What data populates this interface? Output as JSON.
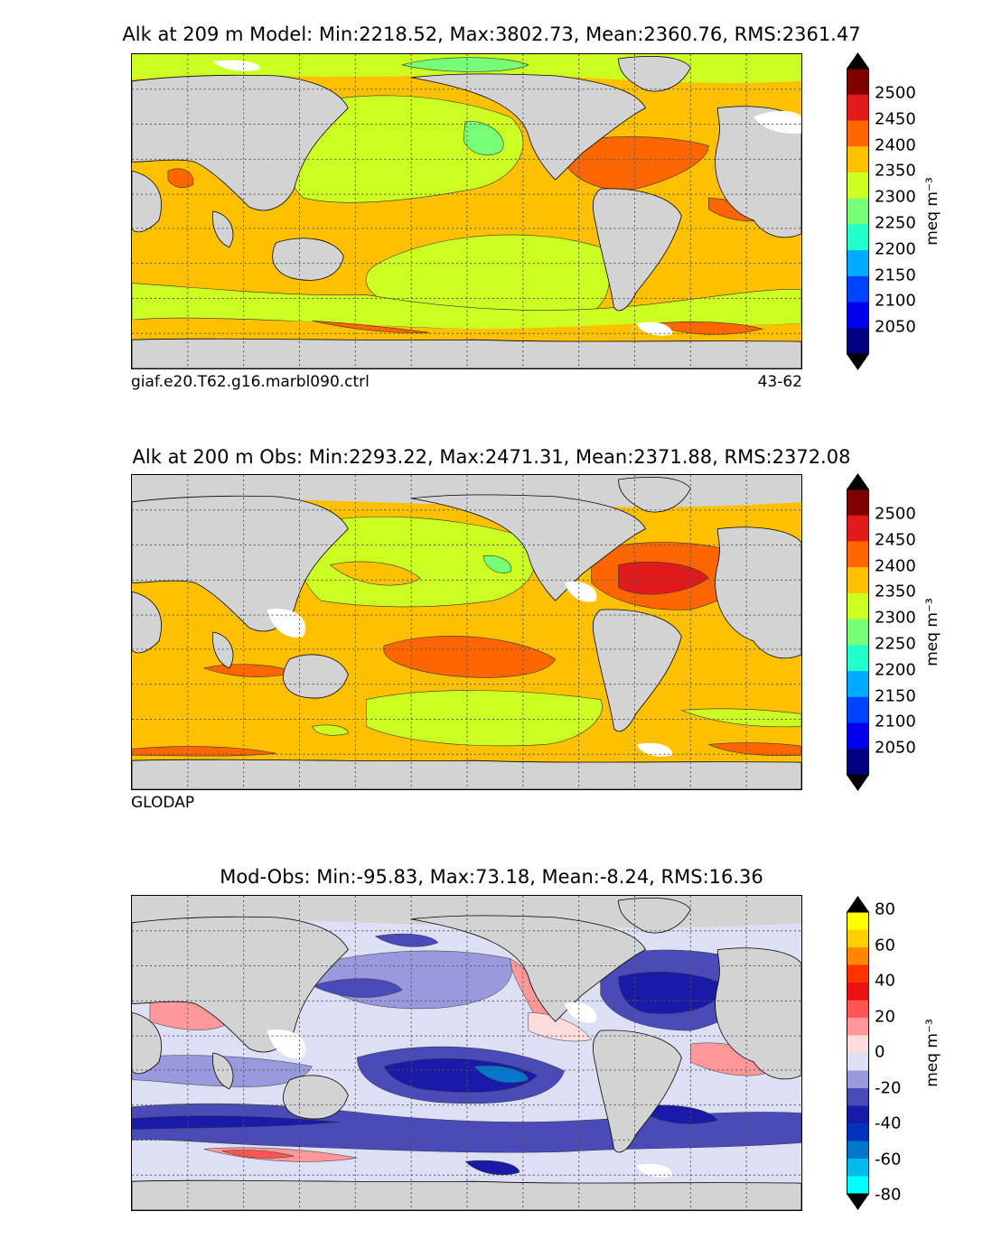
{
  "panels": [
    {
      "title": "Alk at 209 m Model: Min:2218.52, Max:3802.73, Mean:2360.76, RMS:2361.47",
      "caption_left": "giaf.e20.T62.g16.marbl090.ctrl",
      "caption_right": "43-62",
      "colorbar": {
        "unit": "meq m⁻³",
        "ticks": [
          "2500",
          "2450",
          "2400",
          "2350",
          "2300",
          "2250",
          "2200",
          "2150",
          "2100",
          "2050"
        ],
        "colors": [
          "#7f0000",
          "#e31a1c",
          "#ff6600",
          "#ffc000",
          "#ccff22",
          "#77ff77",
          "#22ffcc",
          "#00aaff",
          "#0044ff",
          "#0000ee",
          "#000080"
        ],
        "extend_color": "#000000"
      }
    },
    {
      "title": "Alk at 200 m Obs: Min:2293.22, Max:2471.31, Mean:2371.88, RMS:2372.08",
      "caption_left": "GLODAP",
      "caption_right": "",
      "colorbar": {
        "unit": "meq m⁻³",
        "ticks": [
          "2500",
          "2450",
          "2400",
          "2350",
          "2300",
          "2250",
          "2200",
          "2150",
          "2100",
          "2050"
        ],
        "colors": [
          "#7f0000",
          "#e31a1c",
          "#ff6600",
          "#ffc000",
          "#ccff22",
          "#77ff77",
          "#22ffcc",
          "#00aaff",
          "#0044ff",
          "#0000ee",
          "#000080"
        ],
        "extend_color": "#000000"
      }
    },
    {
      "title": "Mod-Obs: Min:-95.83, Max:73.18, Mean:-8.24, RMS:16.36",
      "caption_left": "",
      "caption_right": "",
      "colorbar": {
        "unit": "meq m⁻³",
        "ticks": [
          "80",
          "60",
          "40",
          "20",
          "0",
          "-20",
          "-40",
          "-60",
          "-80"
        ],
        "colors": [
          "#ffff00",
          "#ffd000",
          "#ff8800",
          "#ff3300",
          "#ee1111",
          "#ff5555",
          "#ff9999",
          "#ffdcdc",
          "#dde0f5",
          "#9999dd",
          "#4a4ab8",
          "#1a1aa8",
          "#0033bb",
          "#0077cc",
          "#00bbee",
          "#00ffff"
        ],
        "extend_color": "#000000"
      }
    }
  ],
  "map_colors": {
    "land": "#d3d3d3",
    "missing": "#ffffff",
    "grid": "#555555"
  }
}
